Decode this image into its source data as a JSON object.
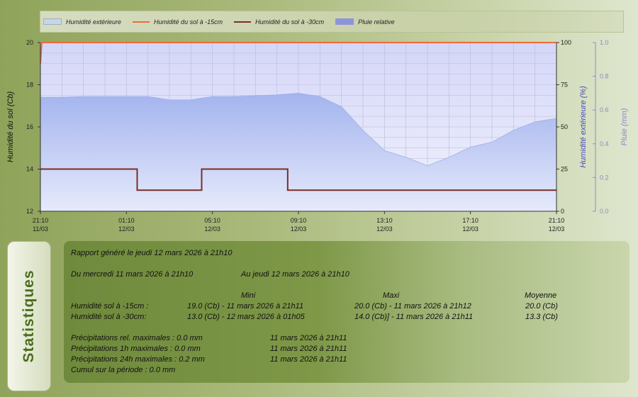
{
  "legend": [
    {
      "label": "Humidité extérieure",
      "type": "area",
      "color": "#c6d6e4"
    },
    {
      "label": "Humidité du sol à -15cm",
      "type": "line",
      "color": "#f06a3a"
    },
    {
      "label": "Humidité du sol à -30cm",
      "type": "line",
      "color": "#7a2e28"
    },
    {
      "label": "Pluie relative",
      "type": "area",
      "color": "#8e94dc"
    }
  ],
  "chart_data": {
    "type": "line",
    "x": [
      "21:10 11/03",
      "22:10",
      "23:10",
      "00:10",
      "01:10 12/03",
      "02:10",
      "03:10",
      "04:10",
      "05:10 12/03",
      "06:10",
      "07:10",
      "08:10",
      "09:10 12/03",
      "10:10",
      "11:10",
      "12:10",
      "13:10 12/03",
      "14:10",
      "15:10",
      "16:10",
      "17:10 12/03",
      "18:10",
      "19:10",
      "20:10",
      "21:10 12/03"
    ],
    "x_ticks": [
      {
        "time": "21:10",
        "date": "11/03"
      },
      {
        "time": "01:10",
        "date": "12/03"
      },
      {
        "time": "05:10",
        "date": "12/03"
      },
      {
        "time": "09:10",
        "date": "12/03"
      },
      {
        "time": "13:10",
        "date": "12/03"
      },
      {
        "time": "17:10",
        "date": "12/03"
      },
      {
        "time": "21:10",
        "date": "12/03"
      }
    ],
    "y_left": {
      "label": "Humidité du sol (Cb)",
      "range": [
        12,
        20
      ],
      "ticks": [
        12,
        14,
        16,
        18,
        20
      ]
    },
    "y_mid": {
      "label": "Humidité extérieure (%)",
      "range": [
        0,
        100
      ],
      "ticks": [
        0,
        25,
        50,
        75,
        100
      ]
    },
    "y_right": {
      "label": "Pluie (mm)",
      "range": [
        0,
        1.0
      ],
      "ticks": [
        "0.0",
        "0.2",
        "0.4",
        "0.6",
        "0.8",
        "1.0"
      ]
    },
    "grid": true,
    "series": [
      {
        "name": "Humidité extérieure",
        "axis": "mid",
        "values": [
          67.6,
          67.6,
          68,
          68,
          68,
          68,
          66,
          66,
          68,
          68,
          68.5,
          69,
          70,
          68,
          62,
          48,
          36,
          32,
          27,
          32,
          38,
          41,
          48,
          53,
          55
        ]
      },
      {
        "name": "Humidité du sol à -15cm",
        "axis": "left",
        "values": [
          19,
          20,
          20,
          20,
          20,
          20,
          20,
          20,
          20,
          20,
          20,
          20,
          20,
          20,
          20,
          20,
          20,
          20,
          20,
          20,
          20,
          20,
          20,
          20,
          20
        ]
      },
      {
        "name": "Humidité du sol à -30cm",
        "axis": "left",
        "values": [
          14,
          14,
          14,
          14,
          14,
          13,
          13,
          13,
          14,
          14,
          14,
          14,
          13,
          13,
          13,
          13,
          13,
          13,
          13,
          13,
          13,
          13,
          13,
          13,
          13
        ]
      },
      {
        "name": "Pluie relative",
        "axis": "right",
        "values": [
          0,
          0,
          0,
          0,
          0,
          0,
          0,
          0,
          0,
          0,
          0,
          0,
          0,
          0,
          0,
          0,
          0,
          0,
          0,
          0,
          0,
          0,
          0,
          0,
          0
        ]
      }
    ]
  },
  "stats": {
    "tab": "Statistiques",
    "generated": "Rapport généré le jeudi 12 mars 2026 à 21h10",
    "from": "Du mercredi 11 mars 2026 à 21h10",
    "to": "Au jeudi 12 mars 2026 à 21h10",
    "col_mini": "Mini",
    "col_maxi": "Maxi",
    "col_moy": "Moyenne",
    "rows": [
      {
        "label": "Humidité sol à -15cm :",
        "mini": "19.0 (Cb) - 11 mars 2026 à 21h11",
        "maxi": "20.0 (Cb) - 11 mars 2026 à 21h12",
        "moy": "20.0 (Cb)"
      },
      {
        "label": "Humidité sol à -30cm:",
        "mini": "13.0 (Cb) - 12 mars 2026 à 01h05",
        "maxi": "14.0 (Cb)] - 11 mars 2026 à 21h11",
        "moy": "13.3 (Cb)"
      }
    ],
    "precip": [
      {
        "label": "Précipitations rel. maximales : 0.0 mm",
        "date": "11 mars 2026 à 21h11"
      },
      {
        "label": "Précipitations 1h maximales : 0.0 mm",
        "date": "11 mars 2026 à 21h11"
      },
      {
        "label": "Précipitations 24h maximales : 0.2 mm",
        "date": "11 mars 2026 à 21h11"
      }
    ],
    "cumul": "Cumul sur la période : 0.0 mm"
  }
}
